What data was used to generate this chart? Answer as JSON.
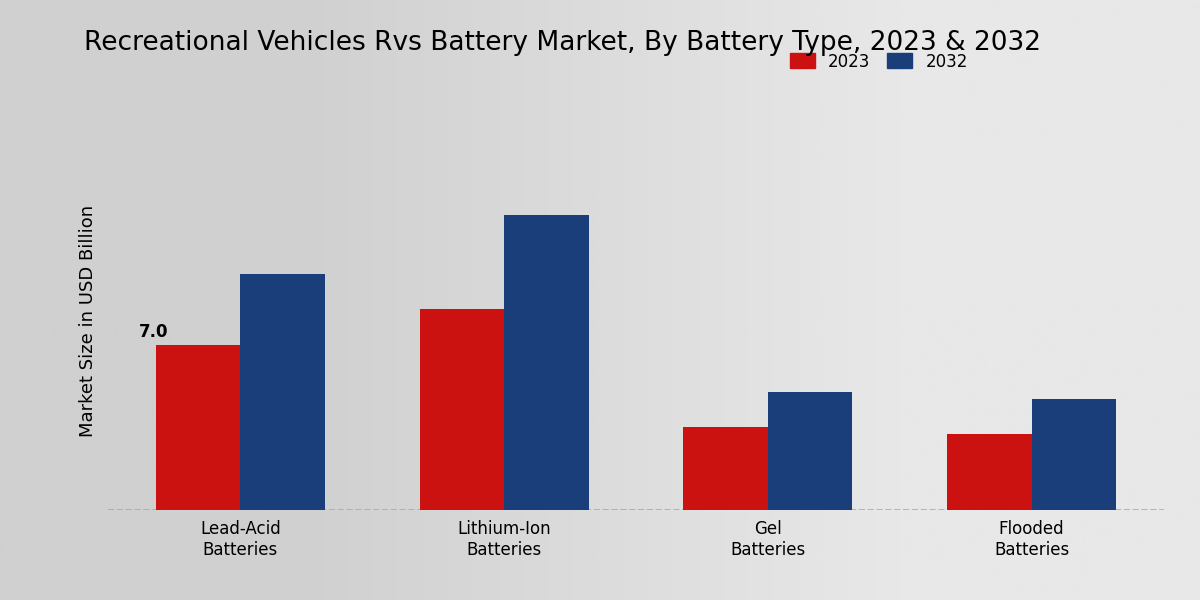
{
  "title": "Recreational Vehicles Rvs Battery Market, By Battery Type, 2023 & 2032",
  "ylabel": "Market Size in USD Billion",
  "categories": [
    "Lead-Acid\nBatteries",
    "Lithium-Ion\nBatteries",
    "Gel\nBatteries",
    "Flooded\nBatteries"
  ],
  "values_2023": [
    7.0,
    8.5,
    3.5,
    3.2
  ],
  "values_2032": [
    10.0,
    12.5,
    5.0,
    4.7
  ],
  "color_2023": "#cc1111",
  "color_2032": "#1a3e7a",
  "annotation_label": "7.0",
  "annotation_bar_idx": 0,
  "legend_labels": [
    "2023",
    "2032"
  ],
  "bar_width": 0.32,
  "ylim": [
    0,
    16
  ],
  "bg_left": "#d0d0d0",
  "bg_right": "#e8e8e8",
  "title_fontsize": 19,
  "ylabel_fontsize": 13,
  "tick_fontsize": 12,
  "legend_fontsize": 12,
  "annot_fontsize": 12
}
